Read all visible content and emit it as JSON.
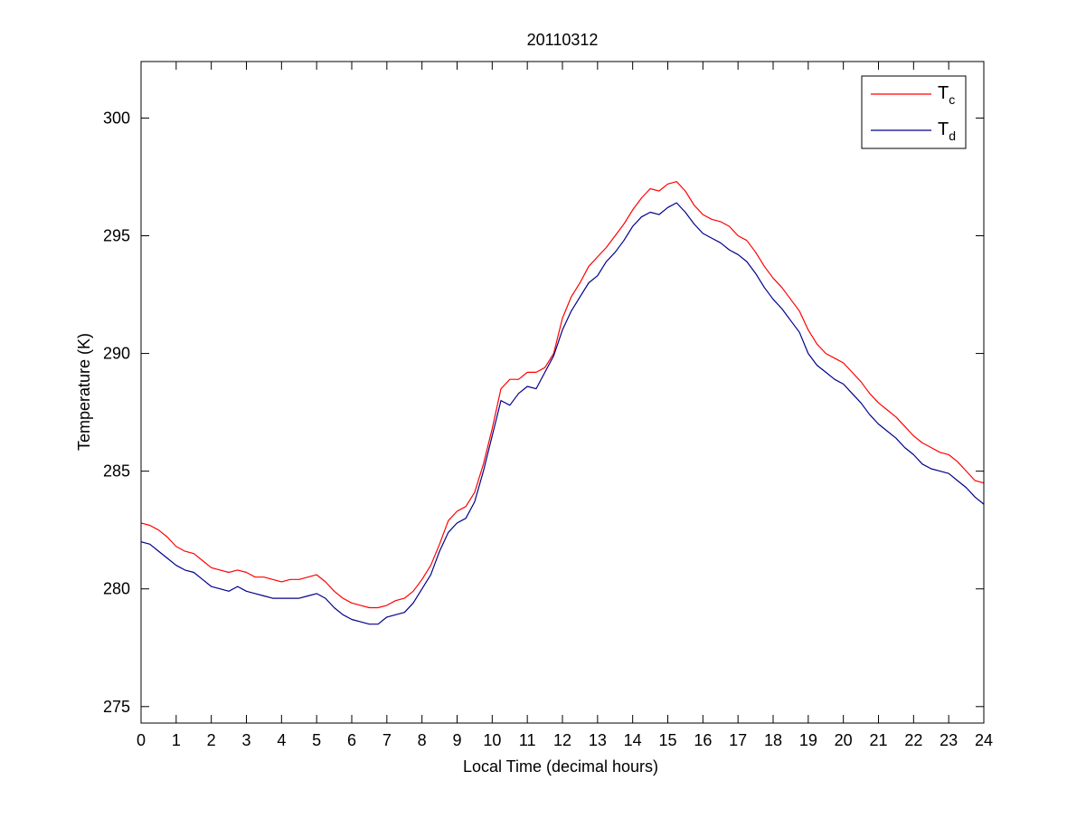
{
  "chart_data": {
    "type": "line",
    "title": "20110312",
    "xlabel": "Local Time (decimal hours)",
    "ylabel": "Temperature (K)",
    "xlim": [
      0,
      24
    ],
    "ylim": [
      274.3,
      302.4
    ],
    "xticks": [
      0,
      1,
      2,
      3,
      4,
      5,
      6,
      7,
      8,
      9,
      10,
      11,
      12,
      13,
      14,
      15,
      16,
      17,
      18,
      19,
      20,
      21,
      22,
      23,
      24
    ],
    "yticks": [
      275,
      280,
      285,
      290,
      295,
      300
    ],
    "grid": false,
    "legend_position": "top-right",
    "series": [
      {
        "legend_base": "T",
        "legend_sub": "c",
        "color": "#ff0000",
        "x": [
          0,
          0.25,
          0.5,
          0.75,
          1,
          1.25,
          1.5,
          1.75,
          2,
          2.25,
          2.5,
          2.75,
          3,
          3.25,
          3.5,
          3.75,
          4,
          4.25,
          4.5,
          4.75,
          5,
          5.25,
          5.5,
          5.75,
          6,
          6.25,
          6.5,
          6.75,
          7,
          7.25,
          7.5,
          7.75,
          8,
          8.25,
          8.5,
          8.75,
          9,
          9.25,
          9.5,
          9.75,
          10,
          10.25,
          10.5,
          10.75,
          11,
          11.25,
          11.5,
          11.75,
          12,
          12.25,
          12.5,
          12.75,
          13,
          13.25,
          13.5,
          13.75,
          14,
          14.25,
          14.5,
          14.75,
          15,
          15.25,
          15.5,
          15.75,
          16,
          16.25,
          16.5,
          16.75,
          17,
          17.25,
          17.5,
          17.75,
          18,
          18.25,
          18.5,
          18.75,
          19,
          19.25,
          19.5,
          19.75,
          20,
          20.25,
          20.5,
          20.75,
          21,
          21.25,
          21.5,
          21.75,
          22,
          22.25,
          22.5,
          22.75,
          23,
          23.25,
          23.5,
          23.75,
          24
        ],
        "values": [
          282.8,
          282.7,
          282.5,
          282.2,
          281.8,
          281.6,
          281.5,
          281.2,
          280.9,
          280.8,
          280.7,
          280.8,
          280.7,
          280.5,
          280.5,
          280.4,
          280.3,
          280.4,
          280.4,
          280.5,
          280.6,
          280.3,
          279.9,
          279.6,
          279.4,
          279.3,
          279.2,
          279.2,
          279.3,
          279.5,
          279.6,
          279.9,
          280.4,
          281.0,
          281.9,
          282.9,
          283.3,
          283.5,
          284.1,
          285.3,
          286.8,
          288.5,
          288.9,
          288.9,
          289.2,
          289.2,
          289.4,
          290.0,
          291.5,
          292.4,
          293.0,
          293.7,
          294.1,
          294.5,
          295.0,
          295.5,
          296.1,
          296.6,
          297.0,
          296.9,
          297.2,
          297.3,
          296.9,
          296.3,
          295.9,
          295.7,
          295.6,
          295.4,
          295.0,
          294.8,
          294.3,
          293.7,
          293.2,
          292.8,
          292.3,
          291.8,
          291.0,
          290.4,
          290.0,
          289.8,
          289.6,
          289.2,
          288.8,
          288.3,
          287.9,
          287.6,
          287.3,
          286.9,
          286.5,
          286.2,
          286.0,
          285.8,
          285.7,
          285.4,
          285.0,
          284.6,
          284.5
        ]
      },
      {
        "legend_base": "T",
        "legend_sub": "d",
        "color": "#00008b",
        "x": [
          0,
          0.25,
          0.5,
          0.75,
          1,
          1.25,
          1.5,
          1.75,
          2,
          2.25,
          2.5,
          2.75,
          3,
          3.25,
          3.5,
          3.75,
          4,
          4.25,
          4.5,
          4.75,
          5,
          5.25,
          5.5,
          5.75,
          6,
          6.25,
          6.5,
          6.75,
          7,
          7.25,
          7.5,
          7.75,
          8,
          8.25,
          8.5,
          8.75,
          9,
          9.25,
          9.5,
          9.75,
          10,
          10.25,
          10.5,
          10.75,
          11,
          11.25,
          11.5,
          11.75,
          12,
          12.25,
          12.5,
          12.75,
          13,
          13.25,
          13.5,
          13.75,
          14,
          14.25,
          14.5,
          14.75,
          15,
          15.25,
          15.5,
          15.75,
          16,
          16.25,
          16.5,
          16.75,
          17,
          17.25,
          17.5,
          17.75,
          18,
          18.25,
          18.5,
          18.75,
          19,
          19.25,
          19.5,
          19.75,
          20,
          20.25,
          20.5,
          20.75,
          21,
          21.25,
          21.5,
          21.75,
          22,
          22.25,
          22.5,
          22.75,
          23,
          23.25,
          23.5,
          23.75,
          24
        ],
        "values": [
          282.0,
          281.9,
          281.6,
          281.3,
          281.0,
          280.8,
          280.7,
          280.4,
          280.1,
          280.0,
          279.9,
          280.1,
          279.9,
          279.8,
          279.7,
          279.6,
          279.6,
          279.6,
          279.6,
          279.7,
          279.8,
          279.6,
          279.2,
          278.9,
          278.7,
          278.6,
          278.5,
          278.5,
          278.8,
          278.9,
          279.0,
          279.4,
          280.0,
          280.6,
          281.6,
          282.4,
          282.8,
          283.0,
          283.7,
          285.0,
          286.5,
          288.0,
          287.8,
          288.3,
          288.6,
          288.5,
          289.2,
          289.9,
          291.0,
          291.8,
          292.4,
          293.0,
          293.3,
          293.9,
          294.3,
          294.8,
          295.4,
          295.8,
          296.0,
          295.9,
          296.2,
          296.4,
          296.0,
          295.5,
          295.1,
          294.9,
          294.7,
          294.4,
          294.2,
          293.9,
          293.4,
          292.8,
          292.3,
          291.9,
          291.4,
          290.9,
          290.0,
          289.5,
          289.2,
          288.9,
          288.7,
          288.3,
          287.9,
          287.4,
          287.0,
          286.7,
          286.4,
          286.0,
          285.7,
          285.3,
          285.1,
          285.0,
          284.9,
          284.6,
          284.3,
          283.9,
          283.6
        ]
      }
    ]
  }
}
